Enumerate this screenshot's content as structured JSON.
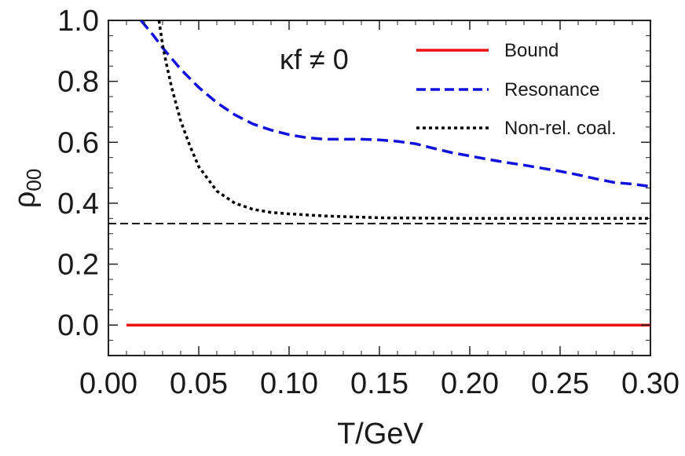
{
  "chart_data": {
    "type": "line",
    "xlabel": "T/GeV",
    "ylabel": "ρ00",
    "xlim": [
      0.0,
      0.3
    ],
    "ylim": [
      -0.1,
      1.0
    ],
    "x_ticks": [
      "0.00",
      "0.05",
      "0.10",
      "0.15",
      "0.20",
      "0.25",
      "0.30"
    ],
    "y_ticks": [
      "0.0",
      "0.2",
      "0.4",
      "0.6",
      "0.8",
      "1.0"
    ],
    "annotation": "κf ≠ 0",
    "legend_position": "top-right",
    "reference_line": {
      "y": 0.3333
    },
    "series": [
      {
        "name": "Bound",
        "color": "#ee1111",
        "x": [
          0.01,
          0.3
        ],
        "y": [
          0.0,
          0.0
        ]
      },
      {
        "name": "Resonance",
        "color": "#1111dd",
        "x": [
          0.018,
          0.025,
          0.03,
          0.04,
          0.05,
          0.06,
          0.07,
          0.08,
          0.09,
          0.1,
          0.11,
          0.12,
          0.13,
          0.14,
          0.15,
          0.16,
          0.17,
          0.18,
          0.19,
          0.2,
          0.21,
          0.22,
          0.23,
          0.24,
          0.25,
          0.26,
          0.27,
          0.28,
          0.29,
          0.3
        ],
        "y": [
          1.0,
          0.95,
          0.91,
          0.84,
          0.78,
          0.73,
          0.69,
          0.66,
          0.64,
          0.625,
          0.615,
          0.61,
          0.61,
          0.61,
          0.608,
          0.603,
          0.595,
          0.58,
          0.566,
          0.555,
          0.544,
          0.534,
          0.525,
          0.515,
          0.505,
          0.493,
          0.48,
          0.468,
          0.463,
          0.455
        ]
      },
      {
        "name": "Non-rel. coal.",
        "color": "#000000",
        "x": [
          0.028,
          0.03,
          0.032,
          0.035,
          0.04,
          0.045,
          0.05,
          0.06,
          0.07,
          0.08,
          0.09,
          0.1,
          0.12,
          0.15,
          0.2,
          0.25,
          0.3
        ],
        "y": [
          1.0,
          0.92,
          0.86,
          0.78,
          0.67,
          0.59,
          0.52,
          0.44,
          0.4,
          0.38,
          0.37,
          0.365,
          0.358,
          0.352,
          0.35,
          0.35,
          0.35
        ]
      }
    ]
  }
}
